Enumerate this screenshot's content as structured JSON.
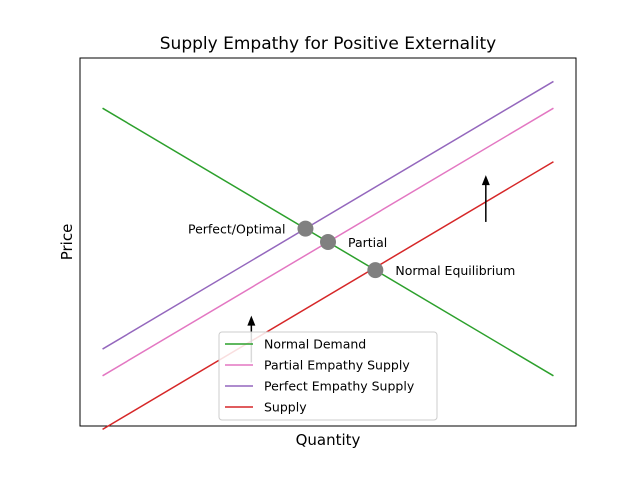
{
  "chart_data": {
    "type": "line",
    "title": "Supply Empathy for Positive Externality",
    "xlabel": "Quantity",
    "ylabel": "Price",
    "xlim": [
      -0.5,
      10.5
    ],
    "ylim": [
      -0.5,
      10.5
    ],
    "x_ticks_shown": false,
    "y_ticks_shown": false,
    "grid": false,
    "legend_position": "lower center",
    "series": [
      {
        "name": "Normal Demand",
        "color": "#2ca02c",
        "x": [
          0,
          10
        ],
        "y": [
          9,
          1
        ]
      },
      {
        "name": "Partial Empathy Supply",
        "color": "#e377c2",
        "x": [
          0,
          10
        ],
        "y": [
          1,
          9
        ]
      },
      {
        "name": "Perfect Empathy Supply",
        "color": "#9467bd",
        "x": [
          0,
          10
        ],
        "y": [
          1.8,
          9.8
        ]
      },
      {
        "name": "Supply",
        "color": "#d62728",
        "x": [
          0,
          10
        ],
        "y": [
          -0.6,
          7.4
        ]
      }
    ],
    "points": [
      {
        "label": "Perfect/Optimal",
        "x": 4.5,
        "y": 5.4,
        "label_side": "left"
      },
      {
        "label": "Partial",
        "x": 5.0,
        "y": 5.0,
        "label_side": "right"
      },
      {
        "label": "Normal Equilibrium",
        "x": 6.05,
        "y": 4.16,
        "label_side": "right"
      }
    ],
    "arrows": [
      {
        "x": 3.3,
        "y_from": 1.4,
        "y_to": 2.8
      },
      {
        "x": 8.5,
        "y_from": 5.6,
        "y_to": 7.0
      }
    ],
    "point_color": "#808080"
  }
}
